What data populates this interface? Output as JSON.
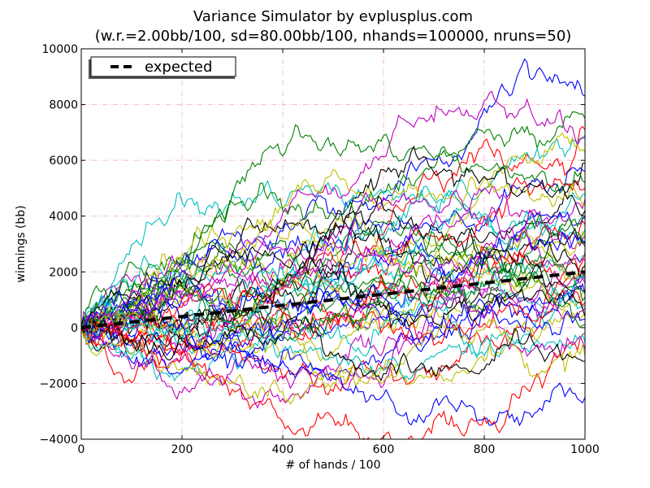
{
  "chart_data": {
    "type": "line",
    "title": "Variance Simulator by evplusplus.com",
    "subtitle": "(w.r.=2.00bb/100, sd=80.00bb/100, nhands=100000, nruns=50)",
    "xlabel": "# of hands / 100",
    "ylabel": "winnings (bb)",
    "xlim": [
      0,
      1000
    ],
    "ylim": [
      -4000,
      10000
    ],
    "xticks": [
      0,
      200,
      400,
      600,
      800,
      1000
    ],
    "yticks": [
      -4000,
      -2000,
      0,
      2000,
      4000,
      6000,
      8000,
      10000
    ],
    "grid": true,
    "legend": {
      "placement": "top-left",
      "entries": [
        "expected"
      ]
    },
    "expected_series": {
      "name": "expected",
      "x": [
        0,
        1000
      ],
      "y": [
        0,
        2000
      ],
      "color": "#000000",
      "style": "dashed"
    },
    "simulated_runs": {
      "count": 50,
      "points_per_run": 1000,
      "win_rate_bb_per_100": 2.0,
      "sd_bb_per_100": 80.0,
      "colors": [
        "#0000ff",
        "#008000",
        "#ff0000",
        "#00bfbf",
        "#bf00bf",
        "#bfbf00",
        "#000000"
      ],
      "final_values_approx": [
        8300,
        7500,
        7100,
        6900,
        6800,
        6300,
        5900,
        5600,
        5200,
        5000,
        4800,
        4600,
        4400,
        4200,
        4000,
        3900,
        3700,
        3500,
        3300,
        3200,
        3100,
        3000,
        2900,
        2700,
        2600,
        2400,
        2300,
        2200,
        2000,
        1900,
        1800,
        1700,
        1600,
        1400,
        1300,
        1200,
        1100,
        900,
        800,
        700,
        500,
        400,
        300,
        100,
        -200,
        -500,
        -800,
        -1000,
        -1200,
        -2500
      ]
    }
  }
}
